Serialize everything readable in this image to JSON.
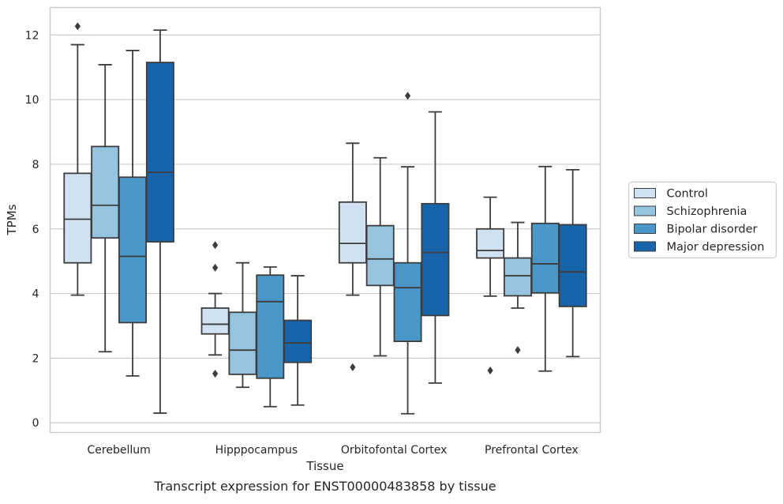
{
  "chart_data": {
    "type": "box",
    "caption": "Transcript expression for ENST00000483858 by tissue",
    "xlabel": "Tissue",
    "ylabel": "TPMs",
    "ylim": [
      -0.3,
      12.85
    ],
    "yticks": [
      0,
      2,
      4,
      6,
      8,
      10,
      12
    ],
    "grid": true,
    "legend_position": "right",
    "categories": [
      "Cerebellum",
      "Hipppocampus",
      "Orbitofontal Cortex",
      "Prefrontal Cortex"
    ],
    "series": [
      {
        "name": "Control",
        "color": "#d0e1f2",
        "boxes": [
          {
            "whisker_low": 3.95,
            "q1": 4.95,
            "median": 6.3,
            "q3": 7.72,
            "whisker_high": 11.7,
            "outliers": [
              12.27
            ]
          },
          {
            "whisker_low": 2.1,
            "q1": 2.75,
            "median": 3.05,
            "q3": 3.55,
            "whisker_high": 4.0,
            "outliers": [
              5.5,
              4.8,
              1.52
            ]
          },
          {
            "whisker_low": 3.95,
            "q1": 4.95,
            "median": 5.55,
            "q3": 6.83,
            "whisker_high": 8.65,
            "outliers": [
              1.72
            ]
          },
          {
            "whisker_low": 3.92,
            "q1": 5.1,
            "median": 5.33,
            "q3": 6.0,
            "whisker_high": 6.98,
            "outliers": [
              1.62
            ]
          }
        ]
      },
      {
        "name": "Schizophrenia",
        "color": "#94c4df",
        "boxes": [
          {
            "whisker_low": 2.2,
            "q1": 5.72,
            "median": 6.73,
            "q3": 8.55,
            "whisker_high": 11.08,
            "outliers": []
          },
          {
            "whisker_low": 1.1,
            "q1": 1.5,
            "median": 2.25,
            "q3": 3.42,
            "whisker_high": 4.95,
            "outliers": []
          },
          {
            "whisker_low": 2.07,
            "q1": 4.25,
            "median": 5.07,
            "q3": 6.1,
            "whisker_high": 8.2,
            "outliers": []
          },
          {
            "whisker_low": 3.55,
            "q1": 3.93,
            "median": 4.55,
            "q3": 5.1,
            "whisker_high": 6.2,
            "outliers": [
              2.25
            ]
          }
        ]
      },
      {
        "name": "Bipolar disorder",
        "color": "#4a98c9",
        "boxes": [
          {
            "whisker_low": 1.45,
            "q1": 3.1,
            "median": 5.15,
            "q3": 7.6,
            "whisker_high": 11.52,
            "outliers": []
          },
          {
            "whisker_low": 0.5,
            "q1": 1.38,
            "median": 3.75,
            "q3": 4.57,
            "whisker_high": 4.82,
            "outliers": []
          },
          {
            "whisker_low": 0.28,
            "q1": 2.52,
            "median": 4.18,
            "q3": 4.95,
            "whisker_high": 7.92,
            "outliers": [
              10.12
            ]
          },
          {
            "whisker_low": 1.6,
            "q1": 4.02,
            "median": 4.92,
            "q3": 6.17,
            "whisker_high": 7.93,
            "outliers": []
          }
        ]
      },
      {
        "name": "Major depression",
        "color": "#1764ab",
        "boxes": [
          {
            "whisker_low": 0.3,
            "q1": 5.6,
            "median": 7.75,
            "q3": 11.15,
            "whisker_high": 12.15,
            "outliers": []
          },
          {
            "whisker_low": 0.55,
            "q1": 1.87,
            "median": 2.47,
            "q3": 3.17,
            "whisker_high": 4.55,
            "outliers": []
          },
          {
            "whisker_low": 1.23,
            "q1": 3.32,
            "median": 5.27,
            "q3": 6.78,
            "whisker_high": 9.62,
            "outliers": []
          },
          {
            "whisker_low": 2.05,
            "q1": 3.6,
            "median": 4.67,
            "q3": 6.13,
            "whisker_high": 7.83,
            "outliers": []
          }
        ]
      }
    ]
  }
}
